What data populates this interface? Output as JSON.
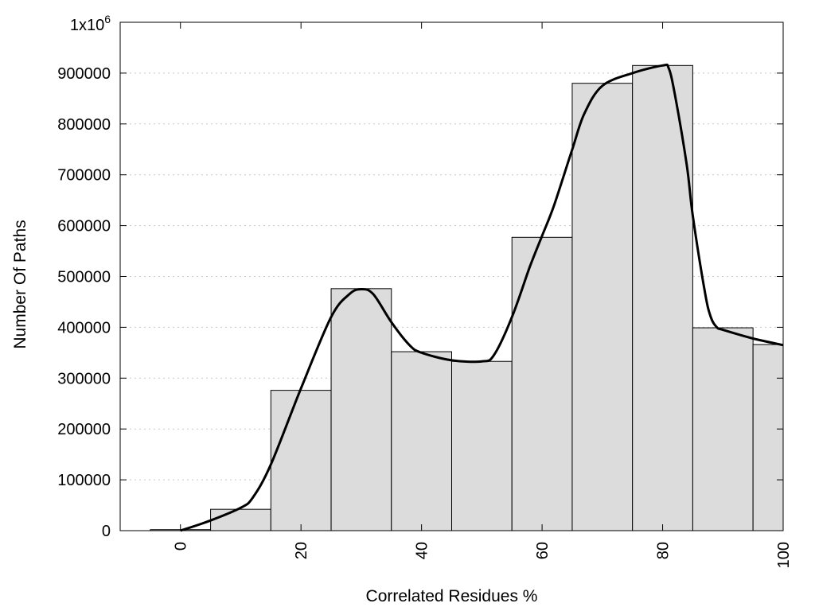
{
  "chart_data": {
    "type": "bar",
    "title": "",
    "xlabel": "Correlated Residues %",
    "ylabel": "Number Of Paths",
    "xlim": [
      -10,
      100
    ],
    "ylim": [
      0,
      1000000
    ],
    "grid": "horizontal-dotted",
    "legend": "none",
    "bin_width": 10,
    "x_ticks": [
      0,
      20,
      40,
      60,
      80,
      100
    ],
    "y_ticks": [
      0,
      100000,
      200000,
      300000,
      400000,
      500000,
      600000,
      700000,
      800000,
      900000
    ],
    "y_tick_labels": [
      "0",
      "100000",
      "200000",
      "300000",
      "400000",
      "500000",
      "600000",
      "700000",
      "800000",
      "900000"
    ],
    "y_top_label": {
      "base": "1x10",
      "exponent": "6"
    },
    "bars": {
      "centers": [
        0,
        10,
        20,
        30,
        40,
        50,
        60,
        70,
        80,
        90,
        100
      ],
      "values": [
        2000,
        42000,
        276000,
        476000,
        352000,
        333000,
        577000,
        880000,
        915000,
        399000,
        366000
      ]
    },
    "curve": {
      "x": [
        0,
        5,
        10,
        12,
        15,
        20,
        25,
        28,
        30,
        32,
        35,
        38,
        40,
        45,
        50,
        52,
        55,
        58,
        60,
        62,
        65,
        67,
        70,
        75,
        80,
        81,
        82,
        84,
        85,
        87,
        88,
        89,
        90,
        95,
        100
      ],
      "y": [
        0,
        20000,
        45000,
        65000,
        130000,
        280000,
        420000,
        465000,
        475000,
        465000,
        410000,
        365000,
        350000,
        335000,
        333000,
        345000,
        420000,
        520000,
        580000,
        640000,
        750000,
        820000,
        875000,
        900000,
        915000,
        910000,
        860000,
        720000,
        620000,
        470000,
        420000,
        400000,
        395000,
        378000,
        365000
      ]
    },
    "colors": {
      "bar_fill": "#dcdcdc",
      "bar_stroke": "#000000",
      "curve": "#000000",
      "grid": "#c8c8c8"
    }
  }
}
